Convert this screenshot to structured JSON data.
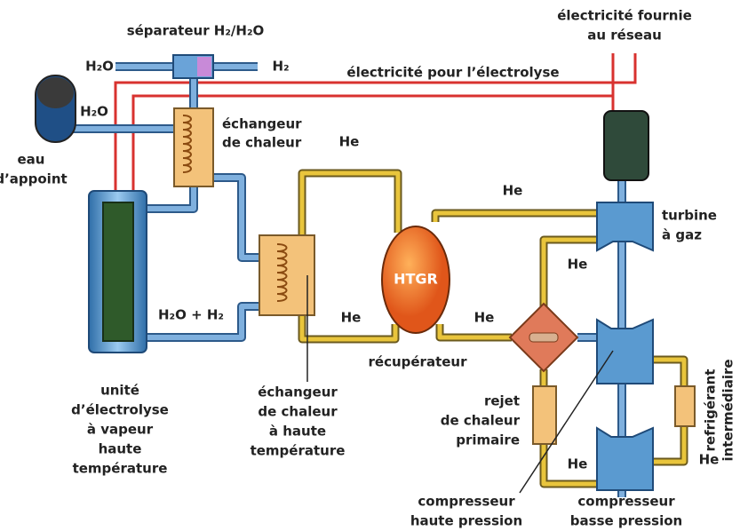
{
  "labels": [
    {
      "lines": [
        "séparateur H₂/H₂O"
      ]
    },
    {
      "lines": [
        "H₂O"
      ]
    },
    {
      "lines": [
        "H₂"
      ]
    },
    {
      "lines": [
        "électricité pour l’électrolyse"
      ]
    },
    {
      "lines": [
        "électricité fournie",
        "au réseau"
      ]
    },
    {
      "lines": [
        "H₂O"
      ]
    },
    {
      "lines": [
        "eau",
        "d’appoint"
      ]
    },
    {
      "lines": [
        "échangeur",
        "de chaleur"
      ]
    },
    {
      "lines": [
        "HTGR"
      ]
    },
    {
      "lines": [
        "turbine",
        "à gaz"
      ]
    },
    {
      "lines": [
        "H₂O + H₂"
      ]
    },
    {
      "lines": [
        "récupérateur"
      ]
    },
    {
      "lines": [
        "rejet",
        "de chaleur",
        "primaire"
      ]
    },
    {
      "lines": [
        "refrigérant",
        "intermédiaire"
      ]
    },
    {
      "lines": [
        "unité",
        "d’électrolyse",
        "à vapeur",
        "haute",
        "température"
      ]
    },
    {
      "lines": [
        "échangeur",
        "de chaleur",
        "à haute",
        "température"
      ]
    },
    {
      "lines": [
        "compresseur",
        "haute pression"
      ]
    },
    {
      "lines": [
        "compresseur",
        "basse pression"
      ]
    }
  ],
  "he": [
    "He",
    "He",
    "He",
    "He",
    "He",
    "He",
    "He"
  ]
}
